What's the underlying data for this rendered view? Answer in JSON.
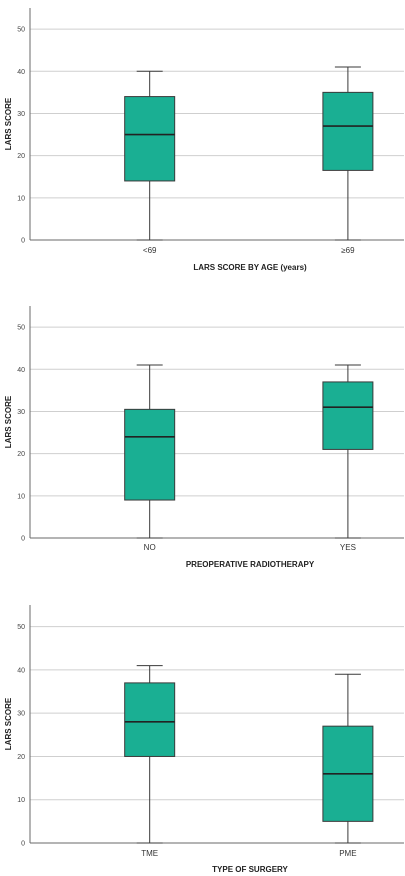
{
  "colors": {
    "box_fill": "#1aaf93",
    "box_stroke": "#3a3a3a",
    "grid": "#cfcfcf",
    "frame": "#6a6a6a"
  },
  "chart_data": [
    {
      "type": "box",
      "xlabel": "LARS SCORE BY AGE (years)",
      "ylabel": "LARS SCORE",
      "ylim": [
        0,
        55
      ],
      "yticks": [
        0,
        10,
        20,
        30,
        40,
        50
      ],
      "grid": true,
      "categories": [
        "<69",
        "≥69"
      ],
      "boxes": [
        {
          "min": 0,
          "q1": 14,
          "median": 25,
          "q3": 34,
          "max": 40
        },
        {
          "min": 0,
          "q1": 16.5,
          "median": 27,
          "q3": 35,
          "max": 41
        }
      ]
    },
    {
      "type": "box",
      "xlabel": "PREOPERATIVE RADIOTHERAPY",
      "ylabel": "LARS SCORE",
      "ylim": [
        0,
        55
      ],
      "yticks": [
        0,
        10,
        20,
        30,
        40,
        50
      ],
      "grid": true,
      "categories": [
        "NO",
        "YES"
      ],
      "boxes": [
        {
          "min": 0,
          "q1": 9,
          "median": 24,
          "q3": 30.5,
          "max": 41
        },
        {
          "min": 0,
          "q1": 21,
          "median": 31,
          "q3": 37,
          "max": 41
        }
      ]
    },
    {
      "type": "box",
      "xlabel": "TYPE OF SURGERY",
      "ylabel": "LARS SCORE",
      "ylim": [
        0,
        55
      ],
      "yticks": [
        0,
        10,
        20,
        30,
        40,
        50
      ],
      "grid": true,
      "categories": [
        "TME",
        "PME"
      ],
      "boxes": [
        {
          "min": 0,
          "q1": 20,
          "median": 28,
          "q3": 37,
          "max": 41
        },
        {
          "min": 0,
          "q1": 5,
          "median": 16,
          "q3": 27,
          "max": 39
        }
      ]
    }
  ]
}
